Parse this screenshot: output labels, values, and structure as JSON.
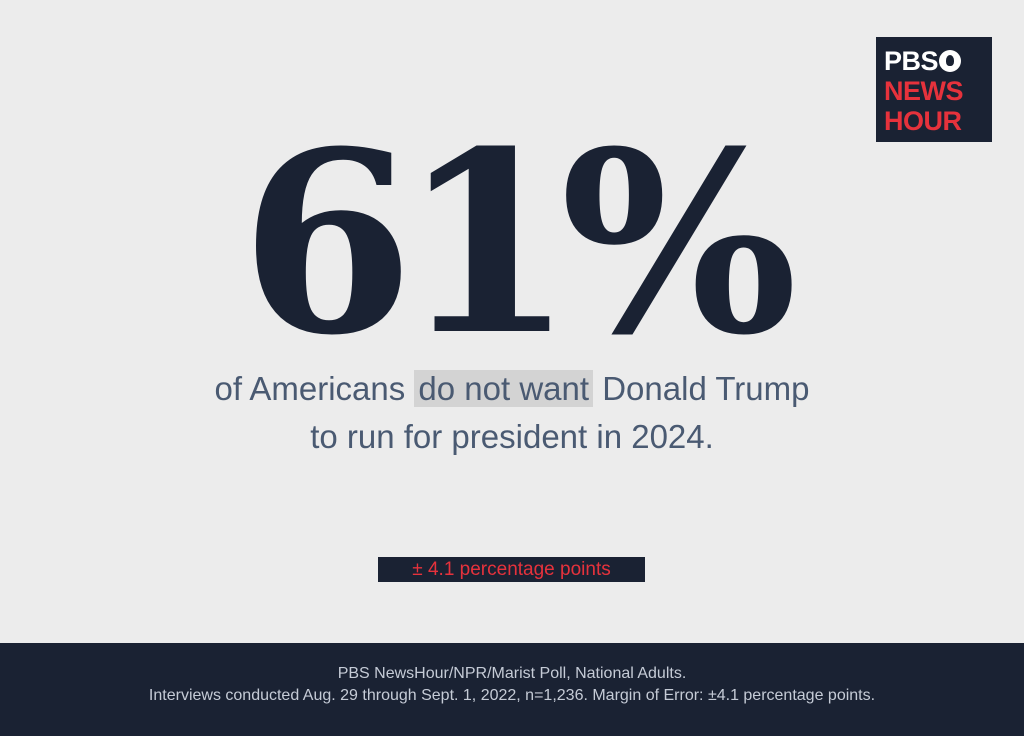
{
  "logo": {
    "line1": "PBS",
    "line2": "NEWS",
    "line3": "HOUR",
    "background": "#1a2233",
    "accent": "#e6323c"
  },
  "headline": {
    "number": "61%",
    "before_highlight": "of Americans",
    "highlight": "do not want",
    "after_highlight": "Donald Trump",
    "line2": "to run for president in 2024."
  },
  "margin_badge": {
    "text": "± 4.1 percentage points"
  },
  "footer": {
    "line1": "PBS NewsHour/NPR/Marist Poll, National Adults.",
    "line2": "Interviews conducted Aug. 29 through Sept. 1, 2022, n=1,236. Margin of Error: ±4.1 percentage points."
  },
  "colors": {
    "background": "#ececec",
    "navy": "#1a2233",
    "slate_text": "#4a5a72",
    "highlight_bg": "#d3d3d3",
    "red": "#e6323c"
  }
}
